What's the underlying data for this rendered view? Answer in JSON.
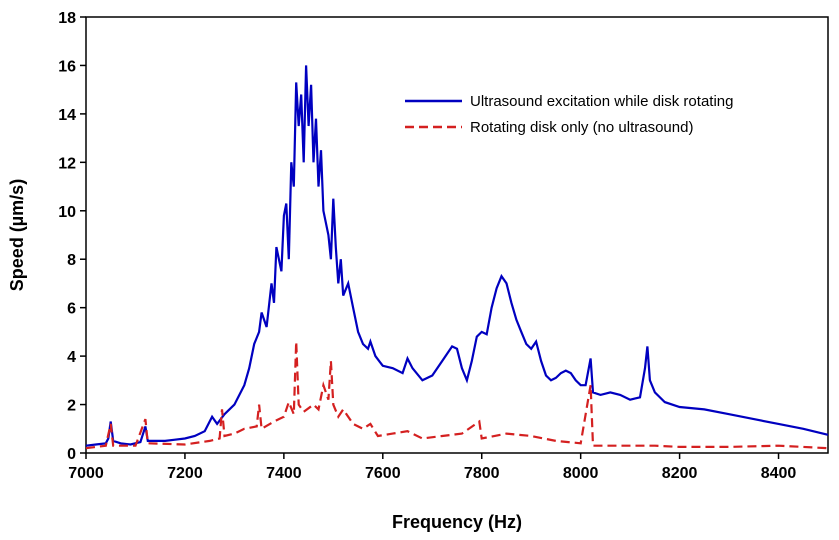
{
  "chart_data": {
    "type": "line",
    "xlabel": "Frequency (Hz)",
    "ylabel": "Speed (µm/s)",
    "xlim": [
      7000,
      8500
    ],
    "xticks": [
      7000,
      7200,
      7400,
      7600,
      7800,
      8000,
      8200,
      8400
    ],
    "ylim": [
      0,
      18
    ],
    "yticks": [
      0,
      2,
      4,
      6,
      8,
      10,
      12,
      14,
      16,
      18
    ],
    "legend": "upper right",
    "series": [
      {
        "name": "Ultrasound excitation while disk rotating",
        "color": "#0000c0",
        "dash": "solid",
        "x": [
          7000,
          7020,
          7040,
          7045,
          7050,
          7055,
          7070,
          7090,
          7110,
          7120,
          7125,
          7140,
          7160,
          7180,
          7200,
          7220,
          7240,
          7255,
          7265,
          7280,
          7300,
          7320,
          7330,
          7340,
          7350,
          7355,
          7365,
          7375,
          7380,
          7385,
          7395,
          7400,
          7405,
          7410,
          7415,
          7420,
          7425,
          7430,
          7435,
          7440,
          7445,
          7450,
          7455,
          7460,
          7465,
          7470,
          7475,
          7480,
          7490,
          7495,
          7500,
          7505,
          7510,
          7515,
          7520,
          7530,
          7540,
          7550,
          7560,
          7570,
          7575,
          7585,
          7600,
          7620,
          7640,
          7650,
          7660,
          7680,
          7700,
          7720,
          7740,
          7750,
          7760,
          7770,
          7780,
          7790,
          7800,
          7810,
          7820,
          7830,
          7840,
          7850,
          7860,
          7870,
          7880,
          7890,
          7900,
          7910,
          7920,
          7930,
          7940,
          7950,
          7960,
          7970,
          7980,
          7990,
          8000,
          8010,
          8020,
          8025,
          8040,
          8060,
          8080,
          8100,
          8120,
          8130,
          8135,
          8140,
          8150,
          8170,
          8200,
          8250,
          8300,
          8350,
          8400,
          8450,
          8500
        ],
        "values": [
          0.3,
          0.35,
          0.4,
          0.6,
          1.3,
          0.5,
          0.4,
          0.35,
          0.45,
          1.1,
          0.5,
          0.5,
          0.5,
          0.55,
          0.6,
          0.7,
          0.9,
          1.5,
          1.2,
          1.6,
          2.0,
          2.8,
          3.5,
          4.5,
          5.0,
          5.8,
          5.2,
          7.0,
          6.2,
          8.5,
          7.5,
          9.8,
          10.3,
          8.0,
          12.0,
          11.0,
          15.3,
          13.5,
          14.8,
          12.0,
          16.0,
          13.5,
          15.2,
          12.0,
          13.8,
          11.0,
          12.5,
          10.0,
          9.0,
          8.0,
          10.5,
          8.5,
          7.0,
          8.0,
          6.5,
          7.0,
          6.0,
          5.0,
          4.5,
          4.3,
          4.6,
          4.0,
          3.6,
          3.5,
          3.3,
          3.9,
          3.5,
          3.0,
          3.2,
          3.8,
          4.4,
          4.3,
          3.5,
          3.0,
          3.8,
          4.8,
          5.0,
          4.9,
          6.0,
          6.8,
          7.3,
          7.0,
          6.2,
          5.5,
          5.0,
          4.5,
          4.3,
          4.6,
          3.8,
          3.2,
          3.0,
          3.1,
          3.3,
          3.4,
          3.3,
          3.0,
          2.8,
          2.8,
          3.9,
          2.5,
          2.4,
          2.5,
          2.4,
          2.2,
          2.3,
          3.5,
          4.4,
          3.0,
          2.5,
          2.1,
          1.9,
          1.8,
          1.6,
          1.4,
          1.2,
          1.0,
          0.75
        ]
      },
      {
        "name": "Rotating disk only (no ultrasound)",
        "color": "#d42020",
        "dash": "dashed",
        "x": [
          7000,
          7040,
          7050,
          7055,
          7100,
          7120,
          7125,
          7200,
          7250,
          7270,
          7275,
          7280,
          7300,
          7320,
          7345,
          7350,
          7355,
          7380,
          7400,
          7410,
          7420,
          7425,
          7430,
          7440,
          7460,
          7470,
          7480,
          7490,
          7495,
          7500,
          7510,
          7520,
          7540,
          7560,
          7575,
          7590,
          7620,
          7650,
          7680,
          7720,
          7760,
          7795,
          7800,
          7850,
          7900,
          7950,
          8000,
          8020,
          8025,
          8060,
          8100,
          8150,
          8200,
          8300,
          8400,
          8500
        ],
        "values": [
          0.2,
          0.3,
          1.2,
          0.3,
          0.3,
          1.4,
          0.4,
          0.35,
          0.5,
          0.6,
          1.8,
          0.7,
          0.8,
          1.0,
          1.1,
          2.0,
          1.0,
          1.3,
          1.5,
          2.1,
          1.6,
          4.6,
          2.0,
          1.7,
          2.0,
          1.8,
          2.8,
          2.2,
          3.8,
          2.0,
          1.5,
          1.8,
          1.2,
          1.0,
          1.2,
          0.7,
          0.8,
          0.9,
          0.6,
          0.7,
          0.8,
          1.3,
          0.6,
          0.8,
          0.7,
          0.5,
          0.4,
          2.8,
          0.3,
          0.3,
          0.3,
          0.3,
          0.25,
          0.25,
          0.3,
          0.2
        ]
      }
    ]
  }
}
